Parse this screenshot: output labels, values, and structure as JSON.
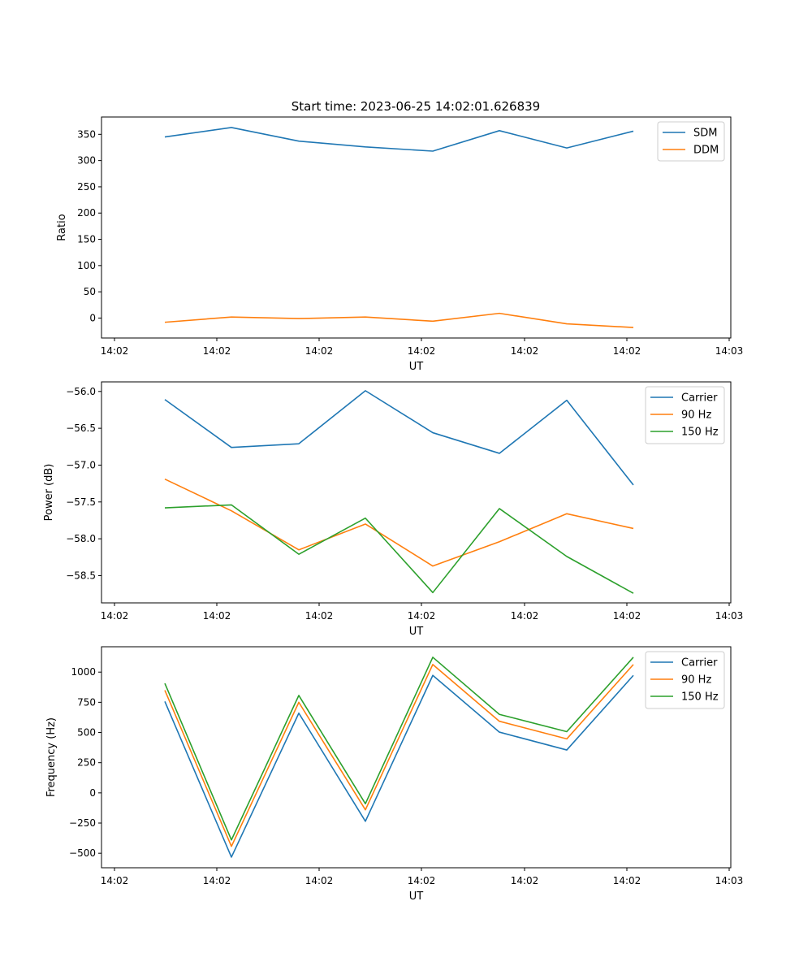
{
  "figure": {
    "title": "Start time: 2023-06-25 14:02:01.626839"
  },
  "colors": {
    "blue": "#1f77b4",
    "orange": "#ff7f0e",
    "green": "#2ca02c"
  },
  "chart_data": [
    {
      "type": "line",
      "title": "Start time: 2023-06-25 14:02:01.626839",
      "xlabel": "UT",
      "ylabel": "Ratio",
      "x_tick_labels": [
        "14:02",
        "14:02",
        "14:02",
        "14:02",
        "14:02",
        "14:02",
        "14:02",
        "14:03"
      ],
      "y_ticks": [
        0,
        50,
        100,
        150,
        200,
        250,
        300,
        350
      ],
      "y_tick_labels": [
        "0",
        "50",
        "100",
        "150",
        "200",
        "250",
        "300",
        "350"
      ],
      "ylim": [
        -38,
        383
      ],
      "legend": "top-right",
      "grid": false,
      "series": [
        {
          "name": "SDM",
          "color": "#1f77b4",
          "values": [
            345,
            363,
            337,
            326,
            318,
            357,
            324,
            356
          ]
        },
        {
          "name": "DDM",
          "color": "#ff7f0e",
          "values": [
            -8,
            2,
            -1,
            2,
            -6,
            9,
            -11,
            -18
          ]
        }
      ]
    },
    {
      "type": "line",
      "xlabel": "UT",
      "ylabel": "Power (dB)",
      "x_tick_labels": [
        "14:02",
        "14:02",
        "14:02",
        "14:02",
        "14:02",
        "14:02",
        "14:02",
        "14:03"
      ],
      "y_ticks": [
        -58.5,
        -58.0,
        -57.5,
        -57.0,
        -56.5,
        -56.0
      ],
      "y_tick_labels": [
        "−58.5",
        "−58.0",
        "−57.5",
        "−57.0",
        "−56.5",
        "−56.0"
      ],
      "ylim": [
        -58.87,
        -55.87
      ],
      "legend": "top-right",
      "grid": false,
      "series": [
        {
          "name": "Carrier",
          "color": "#1f77b4",
          "values": [
            -56.11,
            -56.76,
            -56.71,
            -55.99,
            -56.56,
            -56.84,
            -56.12,
            -57.27
          ]
        },
        {
          "name": "90 Hz",
          "color": "#ff7f0e",
          "values": [
            -57.19,
            -57.62,
            -58.15,
            -57.8,
            -58.37,
            -58.04,
            -57.66,
            -57.86
          ]
        },
        {
          "name": "150 Hz",
          "color": "#2ca02c",
          "values": [
            -57.58,
            -57.54,
            -58.21,
            -57.72,
            -58.73,
            -57.59,
            -58.24,
            -58.74
          ]
        }
      ]
    },
    {
      "type": "line",
      "xlabel": "UT",
      "ylabel": "Frequency (Hz)",
      "x_tick_labels": [
        "14:02",
        "14:02",
        "14:02",
        "14:02",
        "14:02",
        "14:02",
        "14:02",
        "14:03"
      ],
      "y_ticks": [
        -500,
        -250,
        0,
        250,
        500,
        750,
        1000
      ],
      "y_tick_labels": [
        "−500",
        "−250",
        "0",
        "250",
        "500",
        "750",
        "1000"
      ],
      "ylim": [
        -620,
        1210
      ],
      "legend": "top-right",
      "grid": false,
      "series": [
        {
          "name": "Carrier",
          "color": "#1f77b4",
          "values": [
            757,
            -532,
            660,
            -235,
            973,
            503,
            355,
            973
          ]
        },
        {
          "name": "90 Hz",
          "color": "#ff7f0e",
          "values": [
            850,
            -443,
            750,
            -140,
            1063,
            593,
            447,
            1063
          ]
        },
        {
          "name": "150 Hz",
          "color": "#2ca02c",
          "values": [
            907,
            -390,
            807,
            -90,
            1123,
            650,
            507,
            1123
          ]
        }
      ]
    }
  ]
}
